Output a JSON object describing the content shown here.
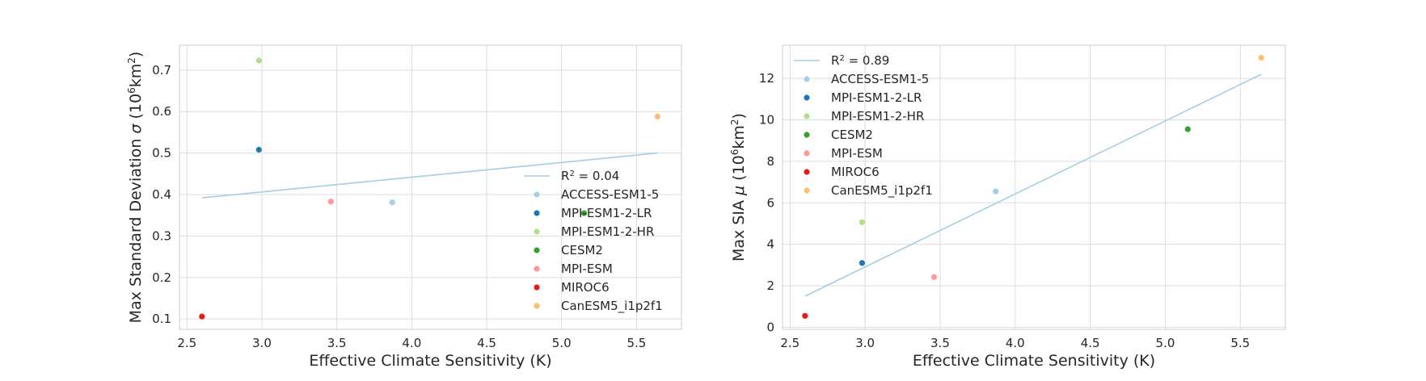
{
  "chart_data": [
    {
      "type": "scatter",
      "xlabel": "Effective Climate Sensitivity (K)",
      "ylabel_parts": {
        "main": "Max Standard Deviation ",
        "sym": "σ",
        "pre": " (10",
        "sup": "6",
        "mid": "km",
        "sup2": "2",
        "post": ")"
      },
      "xlim": [
        2.45,
        5.8
      ],
      "ylim": [
        0.075,
        0.76
      ],
      "xticks": [
        "2.5",
        "3.0",
        "3.5",
        "4.0",
        "4.5",
        "5.0",
        "5.5"
      ],
      "yticks": [
        "0.1",
        "0.2",
        "0.3",
        "0.4",
        "0.5",
        "0.6",
        "0.7"
      ],
      "grid": true,
      "legend_position": "center-right",
      "fit": {
        "label_main": "R",
        "label_sup": "2",
        "label_post": " = 0.04",
        "x": [
          2.6,
          5.64
        ],
        "y": [
          0.392,
          0.5
        ],
        "color": "#a6cee3"
      },
      "series": [
        {
          "name": "ACCESS-ESM1-5",
          "x": 3.87,
          "y": 0.381,
          "color": "#a6cee3"
        },
        {
          "name": "MPI-ESM1-2-LR",
          "x": 2.98,
          "y": 0.508,
          "color": "#1f78b4"
        },
        {
          "name": "MPI-ESM1-2-HR",
          "x": 2.98,
          "y": 0.723,
          "color": "#b2df8a"
        },
        {
          "name": "CESM2",
          "x": 5.15,
          "y": 0.355,
          "color": "#33a02c"
        },
        {
          "name": "MPI-ESM",
          "x": 3.46,
          "y": 0.383,
          "color": "#fb9a99"
        },
        {
          "name": "MIROC6",
          "x": 2.6,
          "y": 0.106,
          "color": "#e31a1c"
        },
        {
          "name": "CanESM5_i1p2f1",
          "x": 5.64,
          "y": 0.588,
          "color": "#fdbf6f"
        }
      ]
    },
    {
      "type": "scatter",
      "xlabel": "Effective Climate Sensitivity (K)",
      "ylabel_parts": {
        "main": "Max SIA ",
        "sym": "μ",
        "pre": " (10",
        "sup": "6",
        "mid": "km",
        "sup2": "2",
        "post": ")"
      },
      "xlim": [
        2.45,
        5.8
      ],
      "ylim": [
        -0.1,
        13.6
      ],
      "xticks": [
        "2.5",
        "3.0",
        "3.5",
        "4.0",
        "4.5",
        "5.0",
        "5.5"
      ],
      "yticks": [
        "0",
        "2",
        "4",
        "6",
        "8",
        "10",
        "12"
      ],
      "grid": true,
      "legend_position": "top-left",
      "fit": {
        "label_main": "R",
        "label_sup": "2",
        "label_post": " = 0.89",
        "x": [
          2.6,
          5.64
        ],
        "y": [
          1.5,
          12.2
        ],
        "color": "#a6cee3"
      },
      "series": [
        {
          "name": "ACCESS-ESM1-5",
          "x": 3.87,
          "y": 6.55,
          "color": "#a6cee3"
        },
        {
          "name": "MPI-ESM1-2-LR",
          "x": 2.98,
          "y": 3.1,
          "color": "#1f78b4"
        },
        {
          "name": "MPI-ESM1-2-HR",
          "x": 2.98,
          "y": 5.07,
          "color": "#b2df8a"
        },
        {
          "name": "CESM2",
          "x": 5.15,
          "y": 9.55,
          "color": "#33a02c"
        },
        {
          "name": "MPI-ESM",
          "x": 3.46,
          "y": 2.42,
          "color": "#fb9a99"
        },
        {
          "name": "MIROC6",
          "x": 2.6,
          "y": 0.55,
          "color": "#e31a1c"
        },
        {
          "name": "CanESM5_i1p2f1",
          "x": 5.64,
          "y": 13.0,
          "color": "#fdbf6f"
        }
      ]
    }
  ]
}
